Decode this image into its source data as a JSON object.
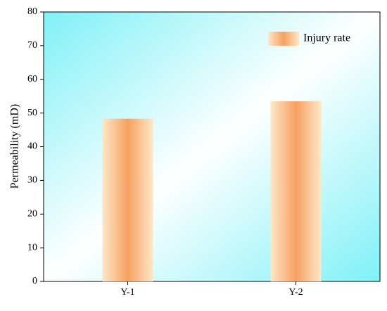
{
  "chart_data": {
    "type": "bar",
    "y_label": "Permeability (mD)",
    "categories": [
      "Y-1",
      "Y-2"
    ],
    "series": [
      {
        "name": "Injury rate",
        "color": "#f7a061",
        "values": [
          48.3,
          53.5
        ]
      }
    ],
    "ylim": [
      0,
      80
    ],
    "yticks": [
      0,
      10,
      20,
      30,
      40,
      50,
      60,
      70,
      80
    ],
    "legend": "top-right"
  }
}
